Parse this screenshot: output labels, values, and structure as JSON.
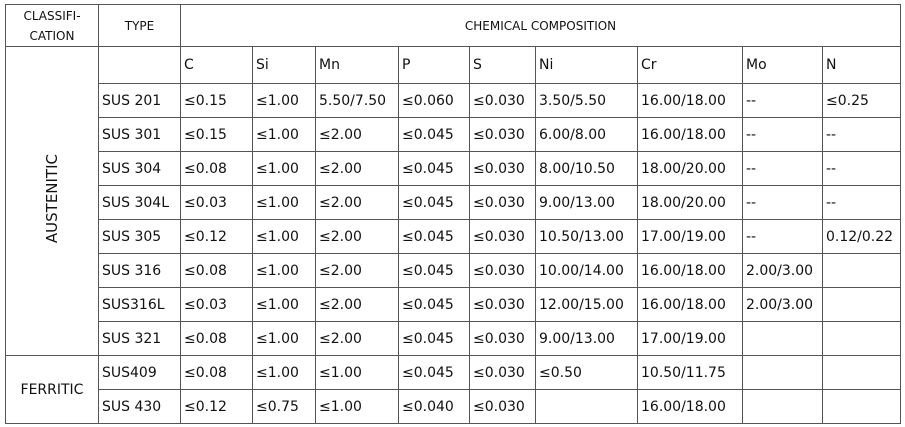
{
  "header": {
    "classification": "CLASSIFI-CATION",
    "type": "TYPE",
    "composition": "CHEMICAL COMPOSITION"
  },
  "columns": [
    "C",
    "Si",
    "Mn",
    "P",
    "S",
    "Ni",
    "Cr",
    "Mo",
    "N"
  ],
  "groups": [
    {
      "name": "AUSTENITIC",
      "rows": [
        {
          "type": "SUS 201",
          "values": [
            "≤0.15",
            "≤1.00",
            "5.50/7.50",
            "≤0.060",
            "≤0.030",
            "3.50/5.50",
            "16.00/18.00",
            "--",
            "≤0.25"
          ]
        },
        {
          "type": "SUS 301",
          "values": [
            "≤0.15",
            "≤1.00",
            "≤2.00",
            "≤0.045",
            "≤0.030",
            "6.00/8.00",
            "16.00/18.00",
            "--",
            "--"
          ]
        },
        {
          "type": "SUS 304",
          "values": [
            "≤0.08",
            "≤1.00",
            "≤2.00",
            "≤0.045",
            "≤0.030",
            "8.00/10.50",
            "18.00/20.00",
            "--",
            "--"
          ]
        },
        {
          "type": "SUS 304L",
          "values": [
            "≤0.03",
            "≤1.00",
            "≤2.00",
            "≤0.045",
            "≤0.030",
            "9.00/13.00",
            "18.00/20.00",
            "--",
            "--"
          ]
        },
        {
          "type": "SUS 305",
          "values": [
            "≤0.12",
            "≤1.00",
            "≤2.00",
            "≤0.045",
            "≤0.030",
            "10.50/13.00",
            "17.00/19.00",
            "--",
            "0.12/0.22"
          ]
        },
        {
          "type": "SUS 316",
          "values": [
            "≤0.08",
            "≤1.00",
            "≤2.00",
            "≤0.045",
            "≤0.030",
            "10.00/14.00",
            "16.00/18.00",
            "2.00/3.00",
            null
          ]
        },
        {
          "type": "SUS316L",
          "values": [
            "≤0.03",
            "≤1.00",
            "≤2.00",
            "≤0.045",
            "≤0.030",
            "12.00/15.00",
            "16.00/18.00",
            "2.00/3.00",
            null
          ]
        },
        {
          "type": "SUS 321",
          "values": [
            "≤0.08",
            "≤1.00",
            "≤2.00",
            "≤0.045",
            "≤0.030",
            "9.00/13.00",
            "17.00/19.00",
            null,
            null
          ]
        }
      ]
    },
    {
      "name": "FERRITIC",
      "rows": [
        {
          "type": "SUS409",
          "values": [
            "≤0.08",
            "≤1.00",
            "≤1.00",
            "≤0.045",
            "≤0.030",
            "≤0.50",
            "10.50/11.75",
            null,
            null
          ]
        },
        {
          "type": "SUS 430",
          "values": [
            "≤0.12",
            "≤0.75",
            "≤1.00",
            "≤0.040",
            "≤0.030",
            null,
            "16.00/18.00",
            null,
            null
          ]
        }
      ]
    }
  ]
}
